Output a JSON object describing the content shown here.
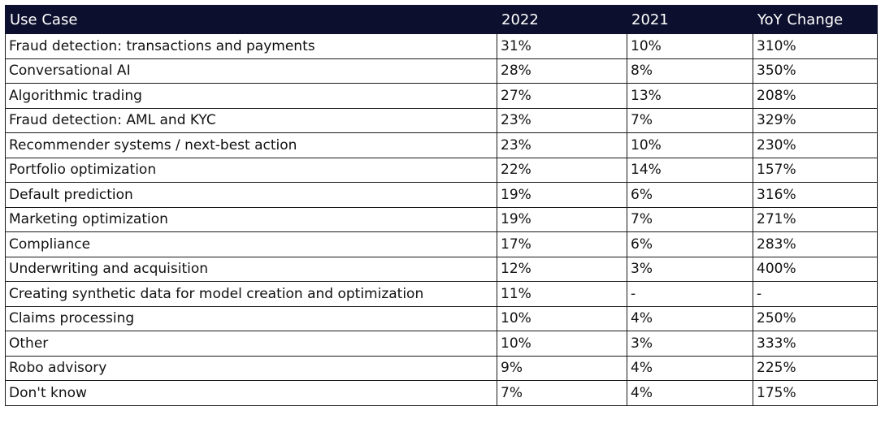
{
  "table": {
    "headers": [
      "Use Case",
      "2022",
      "2021",
      "YoY Change"
    ],
    "rows": [
      [
        "Fraud detection: transactions and payments",
        "31%",
        "10%",
        "310%"
      ],
      [
        "Conversational AI",
        "28%",
        "8%",
        "350%"
      ],
      [
        "Algorithmic trading",
        "27%",
        "13%",
        "208%"
      ],
      [
        "Fraud detection: AML and KYC",
        "23%",
        "7%",
        "329%"
      ],
      [
        "Recommender systems / next-best action",
        "23%",
        "10%",
        "230%"
      ],
      [
        "Portfolio optimization",
        "22%",
        "14%",
        "157%"
      ],
      [
        "Default prediction",
        "19%",
        "6%",
        "316%"
      ],
      [
        "Marketing optimization",
        "19%",
        "7%",
        "271%"
      ],
      [
        "Compliance",
        "17%",
        "6%",
        "283%"
      ],
      [
        "Underwriting and acquisition",
        "12%",
        "3%",
        "400%"
      ],
      [
        "Creating synthetic data for model creation and optimization",
        "11%",
        "-",
        "-"
      ],
      [
        "Claims processing",
        "10%",
        "4%",
        "250%"
      ],
      [
        "Other",
        "10%",
        "3%",
        "333%"
      ],
      [
        "Robo advisory",
        "9%",
        "4%",
        "225%"
      ],
      [
        "Don't know",
        "7%",
        "4%",
        "175%"
      ]
    ]
  },
  "colors": {
    "header_background": "#0d0f2e",
    "header_text": "#ffffff",
    "grid_line": "#1a1a1a"
  }
}
